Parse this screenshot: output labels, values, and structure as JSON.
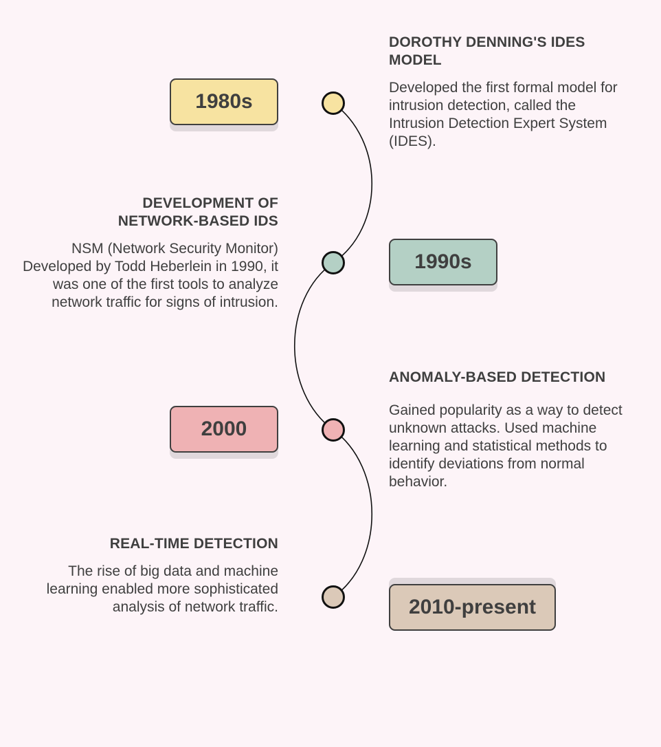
{
  "colors": {
    "background": "#fdf4f8",
    "text": "#3f3f3f",
    "era_1980s": "#f7e3a1",
    "era_1990s": "#b4d0c5",
    "era_2000": "#efb2b4",
    "era_2010": "#dbc9b8"
  },
  "timeline": [
    {
      "era": "1980s",
      "title": "DOROTHY DENNING'S IDES MODEL",
      "description": "Developed the first formal model for intrusion detection, called the Intrusion Detection Expert System (IDES)."
    },
    {
      "era": "1990s",
      "title": "DEVELOPMENT OF NETWORK-BASED IDS",
      "description": "NSM (Network Security Monitor) Developed by Todd Heberlein in 1990, it was one of the first tools to analyze network traffic for signs of intrusion."
    },
    {
      "era": "2000",
      "title": "ANOMALY-BASED DETECTION",
      "description": "Gained popularity as a way to detect unknown attacks. Used machine learning and statistical methods to identify deviations from normal behavior."
    },
    {
      "era": "2010-present",
      "title": "REAL-TIME DETECTION",
      "description": "The rise of big data and machine learning enabled more sophisticated analysis of network traffic."
    }
  ]
}
